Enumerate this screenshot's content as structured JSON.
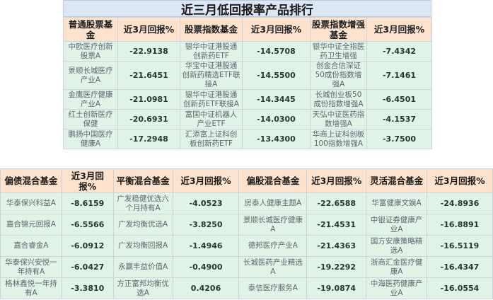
{
  "title": "近三月低回报率产品排行",
  "top_table": {
    "headers": [
      "普通股票基金",
      "近3月回报%",
      "股票指数基金",
      "近3月回报%",
      "股票指数增强基金",
      "近3月回报%"
    ],
    "rows": [
      [
        "中欧医疗创新股票A",
        "-22.9138",
        "银华中证港股通创新药ETF",
        "-14.5708",
        "银华中证全指医药卫生增强",
        "-7.4342"
      ],
      [
        "景顺长城医疗产业A",
        "-21.6451",
        "华宝中证港股通创新药精选ETF联接A",
        "-14.5500",
        "创金合信深证50成份指数增强A",
        "-7.1461"
      ],
      [
        "金鹰医疗健康产业A",
        "-21.0981",
        "银华中证港股通创新药ETF联接A",
        "-14.3445",
        "长城创业板50成份指数增强A",
        "-6.4501"
      ],
      [
        "红土创新医疗保健",
        "-20.6931",
        "富国中证机器人产业ETF",
        "-14.0300",
        "天弘中证医药指数增强A",
        "-4.1537"
      ],
      [
        "鹏扬中国医疗健康A",
        "-17.2948",
        "汇添富上证科创板创新药ETF",
        "-13.4300",
        "华商上证科创板100指数增强A",
        "-3.7500"
      ]
    ]
  },
  "bottom_table": {
    "headers": [
      "偏债混合基金",
      "近3月回报%",
      "平衡混合基金",
      "近3月回报%",
      "偏股混合基金",
      "近3月回报%",
      "灵活混合基金",
      "近3月回报%"
    ],
    "rows": [
      [
        "华泰保兴科益A",
        "-8.6159",
        "广发稳健优选六个月持有A",
        "-4.0523",
        "房泰人健康主题A",
        "-22.6588",
        "华富健康文娱A",
        "-24.8936"
      ],
      [
        "嘉合锦元回报A",
        "-6.5566",
        "广发均衡优选A",
        "-3.8250",
        "景顺长城医疗健康A",
        "-21.4531",
        "中银证券健康产业A",
        "-16.8891"
      ],
      [
        "嘉合睿金A",
        "-6.0912",
        "广发均衡回报A",
        "-1.4946",
        "德邦医疗产业A",
        "-21.4363",
        "国方安康策略精选A",
        "-16.5119"
      ],
      [
        "华泰保兴安悦一年持有A",
        "-6.0427",
        "永赢丰益价值A",
        "-0.4900",
        "长城医药产业精选A",
        "-19.2292",
        "浙商汇金医疗健康A",
        "-16.4347"
      ],
      [
        "格林鑫悦一年持有A",
        "-3.3810",
        "方正富邦均衡优选A",
        "0.4206",
        "泰信医疗服务A",
        "-19.0874",
        "中海医药健康产业A",
        "-16.0554"
      ]
    ]
  }
}
